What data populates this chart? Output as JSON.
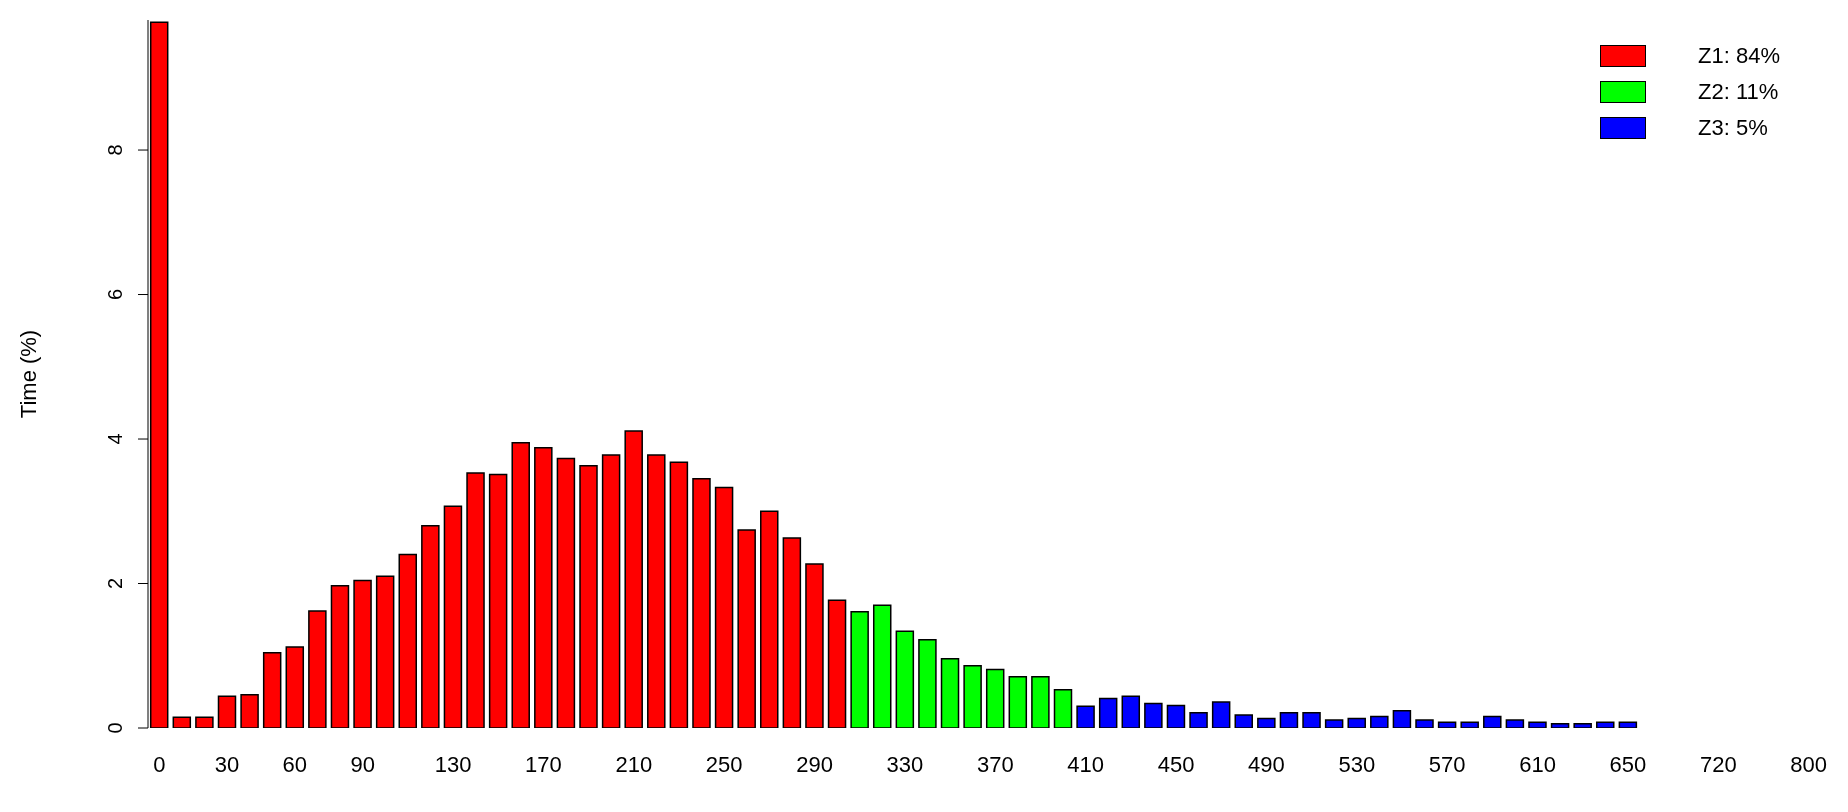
{
  "chart_data": {
    "type": "bar",
    "ylabel": "Time (%)",
    "stacked": true,
    "legend": "top right",
    "categories": [
      "0",
      null,
      null,
      "30",
      null,
      null,
      "60",
      null,
      null,
      "90",
      null,
      null,
      null,
      "130",
      null,
      null,
      null,
      "170",
      null,
      null,
      null,
      "210",
      null,
      null,
      null,
      "250",
      null,
      null,
      null,
      "290",
      null,
      null,
      null,
      "330",
      null,
      null,
      null,
      "370",
      null,
      null,
      null,
      "410",
      null,
      null,
      null,
      "450",
      null,
      null,
      null,
      "490",
      null,
      null,
      null,
      "530",
      null,
      null,
      null,
      "570",
      null,
      null,
      null,
      "610",
      null,
      null,
      null,
      "650",
      null,
      null,
      null,
      "720",
      null,
      null,
      null,
      "800"
    ],
    "ylim": [
      0,
      9.8
    ],
    "yticks": [
      0,
      2,
      4,
      6,
      8
    ],
    "series": [
      {
        "name": "Z1: 84%",
        "color": "#ff0000",
        "values": [
          9.77,
          0.15,
          0.15,
          0.44,
          0.46,
          1.04,
          1.12,
          1.62,
          1.97,
          2.04,
          2.1,
          2.4,
          2.8,
          3.07,
          3.53,
          3.51,
          3.95,
          3.88,
          3.73,
          3.63,
          3.78,
          4.11,
          3.78,
          3.68,
          3.45,
          3.33,
          2.74,
          3.0,
          2.63,
          2.27,
          1.77,
          null,
          null,
          null,
          null,
          null,
          null,
          null,
          null,
          null,
          null,
          null,
          null,
          null,
          null,
          null,
          null,
          null,
          null,
          null,
          null,
          null,
          null,
          null,
          null,
          null,
          null,
          null,
          null,
          null,
          null,
          null,
          null,
          null,
          null,
          null,
          null,
          null,
          null,
          null,
          null,
          null,
          null,
          null
        ]
      },
      {
        "name": "Z2: 11%",
        "color": "#00ff00",
        "values": [
          null,
          null,
          null,
          null,
          null,
          null,
          null,
          null,
          null,
          null,
          null,
          null,
          null,
          null,
          null,
          null,
          null,
          null,
          null,
          null,
          null,
          null,
          null,
          null,
          null,
          null,
          null,
          null,
          null,
          null,
          null,
          1.61,
          1.7,
          1.34,
          1.22,
          0.96,
          0.86,
          0.81,
          0.71,
          0.71,
          0.53,
          null,
          null,
          null,
          null,
          null,
          null,
          null,
          null,
          null,
          null,
          null,
          null,
          null,
          null,
          null,
          null,
          null,
          null,
          null,
          null,
          null,
          null,
          null,
          null,
          null,
          null,
          null,
          null,
          null,
          null,
          null,
          null,
          null
        ]
      },
      {
        "name": "Z3: 5%",
        "color": "#0000ff",
        "values": [
          null,
          null,
          null,
          null,
          null,
          null,
          null,
          null,
          null,
          null,
          null,
          null,
          null,
          null,
          null,
          null,
          null,
          null,
          null,
          null,
          null,
          null,
          null,
          null,
          null,
          null,
          null,
          null,
          null,
          null,
          null,
          null,
          null,
          null,
          null,
          null,
          null,
          null,
          null,
          null,
          null,
          0.3,
          0.41,
          0.44,
          0.34,
          0.31,
          0.21,
          0.36,
          0.18,
          0.13,
          0.21,
          0.21,
          0.11,
          0.13,
          0.16,
          0.24,
          0.11,
          0.08,
          0.08,
          0.16,
          0.11,
          0.08,
          0.06,
          0.06,
          0.08,
          0.08,
          0,
          0,
          0,
          0,
          0,
          0,
          0,
          0
        ]
      }
    ]
  }
}
